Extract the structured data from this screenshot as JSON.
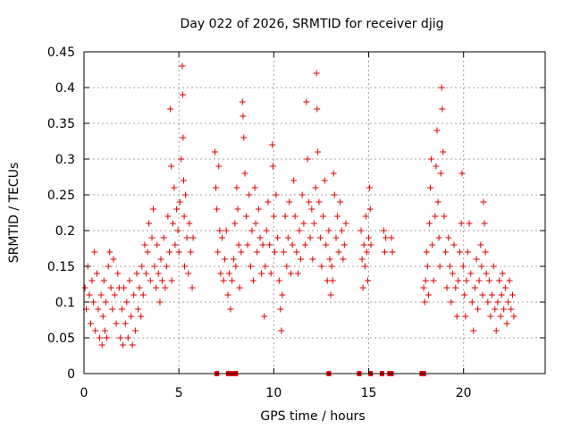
{
  "chart_data": {
    "type": "scatter",
    "title": "Day 022 of 2026, SRMTID for receiver djig",
    "xlabel": "GPS time / hours",
    "ylabel": "SRMTID / TECUs",
    "xlim": [
      0,
      24.3
    ],
    "ylim": [
      0,
      0.45
    ],
    "xticks": [
      "0",
      "5",
      "10",
      "15",
      "20"
    ],
    "yticks": [
      "0",
      "0.05",
      "0.1",
      "0.15",
      "0.2",
      "0.25",
      "0.3",
      "0.35",
      "0.4",
      "0.45"
    ],
    "grid": true,
    "marker": "plus",
    "color": "#e00000",
    "series": [
      {
        "values": [
          [
            0.05,
            0.12
          ],
          [
            0.12,
            0.09
          ],
          [
            0.2,
            0.15
          ],
          [
            0.28,
            0.11
          ],
          [
            0.35,
            0.07
          ],
          [
            0.42,
            0.13
          ],
          [
            0.5,
            0.1
          ],
          [
            0.55,
            0.17
          ],
          [
            0.6,
            0.06
          ],
          [
            0.68,
            0.14
          ],
          [
            0.75,
            0.09
          ],
          [
            0.82,
            0.05
          ],
          [
            0.9,
            0.11
          ],
          [
            0.95,
            0.04
          ],
          [
            1.0,
            0.08
          ],
          [
            1.05,
            0.13
          ],
          [
            1.1,
            0.06
          ],
          [
            1.15,
            0.1
          ],
          [
            1.2,
            0.05
          ],
          [
            1.28,
            0.15
          ],
          [
            1.35,
            0.17
          ],
          [
            1.42,
            0.12
          ],
          [
            1.5,
            0.09
          ],
          [
            1.55,
            0.16
          ],
          [
            1.62,
            0.11
          ],
          [
            1.7,
            0.07
          ],
          [
            1.78,
            0.14
          ],
          [
            1.85,
            0.12
          ],
          [
            1.92,
            0.05
          ],
          [
            2.0,
            0.09
          ],
          [
            2.05,
            0.04
          ],
          [
            2.1,
            0.12
          ],
          [
            2.18,
            0.07
          ],
          [
            2.25,
            0.1
          ],
          [
            2.32,
            0.05
          ],
          [
            2.4,
            0.13
          ],
          [
            2.48,
            0.08
          ],
          [
            2.55,
            0.04
          ],
          [
            2.62,
            0.11
          ],
          [
            2.7,
            0.06
          ],
          [
            2.78,
            0.14
          ],
          [
            2.85,
            0.09
          ],
          [
            2.92,
            0.12
          ],
          [
            3.0,
            0.08
          ],
          [
            3.05,
            0.15
          ],
          [
            3.12,
            0.11
          ],
          [
            3.2,
            0.18
          ],
          [
            3.28,
            0.14
          ],
          [
            3.35,
            0.17
          ],
          [
            3.42,
            0.21
          ],
          [
            3.5,
            0.13
          ],
          [
            3.58,
            0.19
          ],
          [
            3.65,
            0.23
          ],
          [
            3.72,
            0.15
          ],
          [
            3.8,
            0.12
          ],
          [
            3.85,
            0.18
          ],
          [
            3.92,
            0.14
          ],
          [
            4.0,
            0.1
          ],
          [
            4.05,
            0.16
          ],
          [
            4.12,
            0.13
          ],
          [
            4.2,
            0.19
          ],
          [
            4.28,
            0.12
          ],
          [
            4.35,
            0.15
          ],
          [
            4.42,
            0.22
          ],
          [
            4.5,
            0.17
          ],
          [
            4.55,
            0.37
          ],
          [
            4.6,
            0.29
          ],
          [
            4.62,
            0.13
          ],
          [
            4.68,
            0.21
          ],
          [
            4.75,
            0.26
          ],
          [
            4.8,
            0.18
          ],
          [
            4.88,
            0.23
          ],
          [
            4.95,
            0.2
          ],
          [
            5.0,
            0.17
          ],
          [
            5.05,
            0.24
          ],
          [
            5.12,
            0.3
          ],
          [
            5.18,
            0.43
          ],
          [
            5.2,
            0.39
          ],
          [
            5.22,
            0.33
          ],
          [
            5.25,
            0.27
          ],
          [
            5.28,
            0.22
          ],
          [
            5.3,
            0.15
          ],
          [
            5.35,
            0.25
          ],
          [
            5.42,
            0.19
          ],
          [
            5.5,
            0.14
          ],
          [
            5.55,
            0.21
          ],
          [
            5.62,
            0.17
          ],
          [
            5.7,
            0.12
          ],
          [
            5.75,
            0.19
          ],
          [
            6.9,
            0.31
          ],
          [
            6.95,
            0.26
          ],
          [
            7.0,
            0.23
          ],
          [
            7.05,
            0.17
          ],
          [
            7.1,
            0.29
          ],
          [
            7.15,
            0.2
          ],
          [
            7.2,
            0.14
          ],
          [
            7.28,
            0.19
          ],
          [
            7.35,
            0.13
          ],
          [
            7.42,
            0.16
          ],
          [
            7.5,
            0.2
          ],
          [
            7.58,
            0.11
          ],
          [
            7.65,
            0.14
          ],
          [
            7.72,
            0.09
          ],
          [
            7.8,
            0.13
          ],
          [
            7.88,
            0.16
          ],
          [
            7.95,
            0.21
          ],
          [
            8.0,
            0.15
          ],
          [
            8.05,
            0.26
          ],
          [
            8.1,
            0.23
          ],
          [
            8.15,
            0.18
          ],
          [
            8.2,
            0.12
          ],
          [
            8.28,
            0.17
          ],
          [
            8.35,
            0.38
          ],
          [
            8.38,
            0.36
          ],
          [
            8.42,
            0.33
          ],
          [
            8.48,
            0.28
          ],
          [
            8.55,
            0.22
          ],
          [
            8.62,
            0.18
          ],
          [
            8.7,
            0.25
          ],
          [
            8.78,
            0.15
          ],
          [
            8.85,
            0.2
          ],
          [
            8.92,
            0.13
          ],
          [
            9.0,
            0.26
          ],
          [
            9.05,
            0.21
          ],
          [
            9.12,
            0.17
          ],
          [
            9.2,
            0.23
          ],
          [
            9.28,
            0.19
          ],
          [
            9.35,
            0.14
          ],
          [
            9.42,
            0.18
          ],
          [
            9.5,
            0.08
          ],
          [
            9.55,
            0.15
          ],
          [
            9.62,
            0.2
          ],
          [
            9.7,
            0.24
          ],
          [
            9.78,
            0.18
          ],
          [
            9.85,
            0.14
          ],
          [
            9.92,
            0.32
          ],
          [
            9.95,
            0.29
          ],
          [
            10.0,
            0.22
          ],
          [
            10.05,
            0.17
          ],
          [
            10.12,
            0.25
          ],
          [
            10.2,
            0.19
          ],
          [
            10.28,
            0.13
          ],
          [
            10.35,
            0.09
          ],
          [
            10.4,
            0.06
          ],
          [
            10.45,
            0.11
          ],
          [
            10.52,
            0.17
          ],
          [
            10.6,
            0.22
          ],
          [
            10.68,
            0.15
          ],
          [
            10.75,
            0.19
          ],
          [
            10.82,
            0.24
          ],
          [
            10.9,
            0.14
          ],
          [
            10.98,
            0.18
          ],
          [
            11.05,
            0.27
          ],
          [
            11.12,
            0.22
          ],
          [
            11.2,
            0.17
          ],
          [
            11.28,
            0.14
          ],
          [
            11.35,
            0.2
          ],
          [
            11.42,
            0.16
          ],
          [
            11.5,
            0.25
          ],
          [
            11.58,
            0.21
          ],
          [
            11.65,
            0.18
          ],
          [
            11.72,
            0.38
          ],
          [
            11.78,
            0.3
          ],
          [
            11.85,
            0.24
          ],
          [
            11.92,
            0.19
          ],
          [
            12.0,
            0.23
          ],
          [
            12.05,
            0.16
          ],
          [
            12.12,
            0.21
          ],
          [
            12.2,
            0.26
          ],
          [
            12.25,
            0.42
          ],
          [
            12.28,
            0.37
          ],
          [
            12.32,
            0.31
          ],
          [
            12.38,
            0.24
          ],
          [
            12.45,
            0.19
          ],
          [
            12.52,
            0.15
          ],
          [
            12.6,
            0.22
          ],
          [
            12.68,
            0.27
          ],
          [
            12.75,
            0.18
          ],
          [
            12.82,
            0.13
          ],
          [
            12.9,
            0.2
          ],
          [
            12.95,
            0.16
          ],
          [
            13.0,
            0.11
          ],
          [
            13.05,
            0.15
          ],
          [
            13.1,
            0.13
          ],
          [
            13.15,
            0.28
          ],
          [
            13.2,
            0.25
          ],
          [
            13.28,
            0.19
          ],
          [
            13.35,
            0.22
          ],
          [
            13.42,
            0.17
          ],
          [
            13.5,
            0.24
          ],
          [
            13.58,
            0.2
          ],
          [
            13.65,
            0.16
          ],
          [
            13.72,
            0.18
          ],
          [
            13.8,
            0.21
          ],
          [
            14.6,
            0.2
          ],
          [
            14.65,
            0.16
          ],
          [
            14.7,
            0.12
          ],
          [
            14.75,
            0.18
          ],
          [
            14.8,
            0.15
          ],
          [
            14.85,
            0.22
          ],
          [
            14.9,
            0.17
          ],
          [
            14.95,
            0.13
          ],
          [
            15.0,
            0.19
          ],
          [
            15.05,
            0.26
          ],
          [
            15.08,
            0.23
          ],
          [
            15.12,
            0.18
          ],
          [
            15.8,
            0.2
          ],
          [
            15.85,
            0.17
          ],
          [
            15.9,
            0.19
          ],
          [
            16.2,
            0.19
          ],
          [
            16.25,
            0.17
          ],
          [
            17.9,
            0.12
          ],
          [
            17.95,
            0.1
          ],
          [
            18.0,
            0.13
          ],
          [
            18.05,
            0.17
          ],
          [
            18.1,
            0.15
          ],
          [
            18.15,
            0.11
          ],
          [
            18.2,
            0.21
          ],
          [
            18.25,
            0.26
          ],
          [
            18.3,
            0.3
          ],
          [
            18.35,
            0.18
          ],
          [
            18.42,
            0.13
          ],
          [
            18.5,
            0.22
          ],
          [
            18.55,
            0.29
          ],
          [
            18.6,
            0.34
          ],
          [
            18.65,
            0.24
          ],
          [
            18.7,
            0.19
          ],
          [
            18.75,
            0.15
          ],
          [
            18.8,
            0.28
          ],
          [
            18.85,
            0.4
          ],
          [
            18.88,
            0.37
          ],
          [
            18.92,
            0.31
          ],
          [
            18.98,
            0.22
          ],
          [
            19.05,
            0.17
          ],
          [
            19.12,
            0.12
          ],
          [
            19.2,
            0.19
          ],
          [
            19.28,
            0.15
          ],
          [
            19.35,
            0.1
          ],
          [
            19.42,
            0.14
          ],
          [
            19.5,
            0.18
          ],
          [
            19.58,
            0.12
          ],
          [
            19.65,
            0.08
          ],
          [
            19.72,
            0.13
          ],
          [
            19.8,
            0.17
          ],
          [
            19.88,
            0.21
          ],
          [
            19.92,
            0.28
          ],
          [
            19.98,
            0.15
          ],
          [
            20.05,
            0.11
          ],
          [
            20.1,
            0.08
          ],
          [
            20.15,
            0.13
          ],
          [
            20.22,
            0.17
          ],
          [
            20.3,
            0.21
          ],
          [
            20.38,
            0.14
          ],
          [
            20.45,
            0.1
          ],
          [
            20.52,
            0.06
          ],
          [
            20.6,
            0.12
          ],
          [
            20.68,
            0.16
          ],
          [
            20.75,
            0.09
          ],
          [
            20.82,
            0.13
          ],
          [
            20.9,
            0.18
          ],
          [
            20.95,
            0.15
          ],
          [
            21.0,
            0.11
          ],
          [
            21.05,
            0.24
          ],
          [
            21.1,
            0.21
          ],
          [
            21.15,
            0.17
          ],
          [
            21.2,
            0.14
          ],
          [
            21.28,
            0.1
          ],
          [
            21.35,
            0.13
          ],
          [
            21.42,
            0.08
          ],
          [
            21.5,
            0.11
          ],
          [
            21.58,
            0.15
          ],
          [
            21.65,
            0.09
          ],
          [
            21.72,
            0.06
          ],
          [
            21.8,
            0.1
          ],
          [
            21.88,
            0.13
          ],
          [
            21.95,
            0.08
          ],
          [
            22.0,
            0.11
          ],
          [
            22.05,
            0.14
          ],
          [
            22.12,
            0.09
          ],
          [
            22.2,
            0.12
          ],
          [
            22.28,
            0.07
          ],
          [
            22.35,
            0.1
          ],
          [
            22.42,
            0.13
          ],
          [
            22.5,
            0.09
          ],
          [
            22.58,
            0.11
          ],
          [
            22.65,
            0.08
          ]
        ]
      }
    ],
    "zero_values_x": [
      7.0,
      7.6,
      7.8,
      8.0,
      12.9,
      14.5,
      15.1,
      15.7,
      16.1,
      16.2,
      17.8,
      17.9
    ]
  }
}
